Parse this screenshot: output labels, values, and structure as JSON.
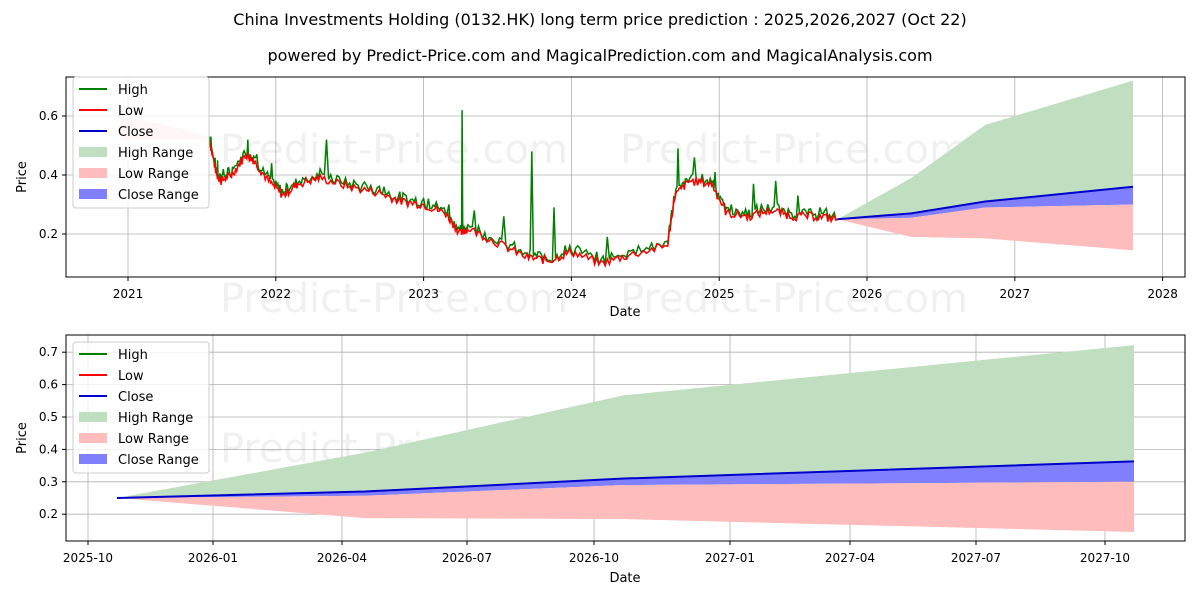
{
  "title": "China Investments Holding (0132.HK) long term price prediction : 2025,2026,2027 (Oct 22)",
  "subtitle": "powered by Predict-Price.com and MagicalPrediction.com and MagicalAnalysis.com",
  "watermark": "Predict-Price.com",
  "colors": {
    "high": "#008000",
    "low": "#ff0000",
    "close": "#0000cc",
    "high_range": "#c0dfc0",
    "low_range": "#ffbcbc",
    "close_range": "#8080ff",
    "grid": "#b0b0b0"
  },
  "legend": [
    {
      "label": "High",
      "type": "line",
      "color": "#008000"
    },
    {
      "label": "Low",
      "type": "line",
      "color": "#ff0000"
    },
    {
      "label": "Close",
      "type": "line",
      "color": "#0000cc"
    },
    {
      "label": "High Range",
      "type": "patch",
      "color": "#c0dfc0"
    },
    {
      "label": "Low Range",
      "type": "patch",
      "color": "#ffbcbc"
    },
    {
      "label": "Close Range",
      "type": "patch",
      "color": "#8080ff"
    }
  ],
  "chart_data": [
    {
      "type": "line",
      "title": "Long term history and prediction",
      "xlabel": "Date",
      "ylabel": "Price",
      "xlim": [
        2020.6,
        2028.15
      ],
      "ylim": [
        0.05,
        0.74
      ],
      "xticks": [
        2021,
        2022,
        2023,
        2024,
        2025,
        2026,
        2027,
        2028
      ],
      "yticks": [
        0.2,
        0.4,
        0.6
      ],
      "ytick_labels": [
        "0.2",
        "0.4",
        "0.6"
      ],
      "grid": true,
      "legend_position": "upper left",
      "history": {
        "x": [
          2021.55,
          2021.6,
          2021.63,
          2021.7,
          2021.8,
          2021.85,
          2021.95,
          2022.05,
          2022.15,
          2022.3,
          2022.5,
          2022.7,
          2022.85,
          2023.0,
          2023.15,
          2023.25,
          2023.3,
          2023.5,
          2023.7,
          2023.85,
          2024.0,
          2024.2,
          2024.4,
          2024.65,
          2024.7,
          2024.8,
          2024.95,
          2025.05,
          2025.2,
          2025.35,
          2025.5,
          2025.65,
          2025.8
        ],
        "high": [
          0.53,
          0.45,
          0.42,
          0.43,
          0.52,
          0.47,
          0.44,
          0.37,
          0.39,
          0.52,
          0.37,
          0.36,
          0.33,
          0.32,
          0.3,
          0.62,
          0.28,
          0.26,
          0.48,
          0.29,
          0.16,
          0.19,
          0.16,
          0.18,
          0.49,
          0.46,
          0.41,
          0.3,
          0.37,
          0.38,
          0.33,
          0.29,
          0.27
        ],
        "low": [
          0.52,
          0.4,
          0.38,
          0.4,
          0.47,
          0.45,
          0.38,
          0.33,
          0.37,
          0.39,
          0.36,
          0.34,
          0.31,
          0.3,
          0.27,
          0.2,
          0.22,
          0.17,
          0.12,
          0.11,
          0.14,
          0.1,
          0.13,
          0.16,
          0.33,
          0.38,
          0.37,
          0.27,
          0.26,
          0.28,
          0.26,
          0.26,
          0.25
        ]
      },
      "prediction": {
        "x": [
          2025.8,
          2026.3,
          2026.8,
          2027.8
        ],
        "close": [
          0.25,
          0.27,
          0.31,
          0.36
        ],
        "high_range_upper": [
          0.25,
          0.39,
          0.57,
          0.72
        ],
        "close_range_lower": [
          0.25,
          0.255,
          0.29,
          0.3
        ],
        "low_range_lower": [
          0.25,
          0.19,
          0.185,
          0.145
        ]
      }
    },
    {
      "type": "line",
      "title": "Prediction detail",
      "xlabel": "Date",
      "ylabel": "Price",
      "ylim": [
        0.12,
        0.75
      ],
      "xtick_labels": [
        "2025-10",
        "2026-01",
        "2026-04",
        "2026-07",
        "2026-10",
        "2027-01",
        "2027-04",
        "2027-07",
        "2027-10"
      ],
      "yticks": [
        0.2,
        0.3,
        0.4,
        0.5,
        0.6,
        0.7
      ],
      "ytick_labels": [
        "0.2",
        "0.3",
        "0.4",
        "0.5",
        "0.6",
        "0.7"
      ],
      "grid": true,
      "legend_position": "upper left",
      "x": [
        "2025-10-22",
        "2026-04-22",
        "2026-10-22",
        "2027-10-22"
      ],
      "close": [
        0.25,
        0.27,
        0.31,
        0.363
      ],
      "high_range_upper": [
        0.25,
        0.39,
        0.567,
        0.722
      ],
      "close_range_lower": [
        0.25,
        0.257,
        0.29,
        0.3
      ],
      "low_range_lower": [
        0.25,
        0.188,
        0.185,
        0.145
      ]
    }
  ]
}
